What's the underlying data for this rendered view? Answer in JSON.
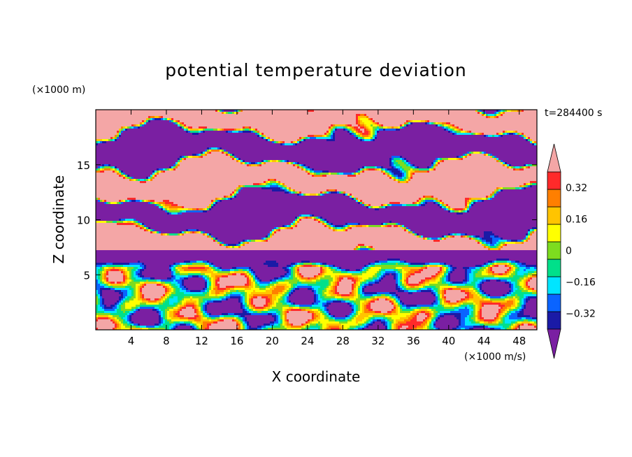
{
  "chart_data": {
    "type": "heatmap",
    "title": "potential temperature deviation",
    "xlabel": "X coordinate",
    "ylabel": "Z coordinate",
    "x_unit": "(×1000 m/s)",
    "y_unit": "(×1000 m)",
    "time_label": "t=284400 s",
    "xlim": [
      0,
      50
    ],
    "ylim": [
      0,
      20
    ],
    "x_ticks": [
      4,
      8,
      12,
      16,
      20,
      24,
      28,
      32,
      36,
      40,
      44,
      48
    ],
    "y_ticks": [
      5,
      10,
      15
    ],
    "colorbar": {
      "colors": [
        "#7a1fa2",
        "#1a1aa6",
        "#0a64ff",
        "#00e5ff",
        "#00e08a",
        "#7ddc1f",
        "#ffff00",
        "#ffc400",
        "#ff7f00",
        "#ff2a2a",
        "#f4a6a6"
      ],
      "labels": [
        "−0.32",
        "−0.16",
        "0",
        "0.16",
        "0.32"
      ],
      "label_values": [
        -0.32,
        -0.16,
        0,
        0.16,
        0.32
      ],
      "extend": "both"
    },
    "regions": [
      {
        "z_range": [
          0,
          7
        ],
        "description_value": "mixed anomalies from −0.32 to 0.32"
      },
      {
        "z_range": [
          7,
          20
        ],
        "description_value": "alternating layers of values above 0.4 and below −0.4"
      }
    ],
    "grid": false,
    "legend": "colorbar-right"
  }
}
